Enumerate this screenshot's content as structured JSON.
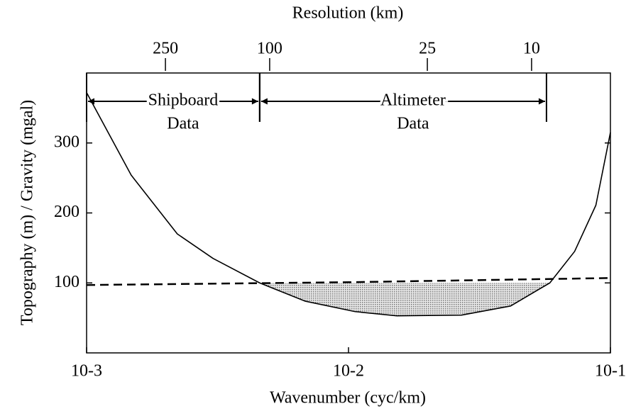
{
  "chart_data": {
    "type": "line",
    "xlabel": "Wavenumber (cyc/km)",
    "ylabel": "Topography (m) / Gravity (mgal)",
    "x2label": "Resolution (km)",
    "xscale": "log",
    "xlim": [
      0.001,
      0.1
    ],
    "ylim": [
      0,
      400
    ],
    "xticks": [
      {
        "value": 0.001,
        "label": "10-3"
      },
      {
        "value": 0.01,
        "label": "10-2"
      },
      {
        "value": 0.1,
        "label": "10-1"
      }
    ],
    "x2ticks": [
      {
        "value": 0.002,
        "label": "250"
      },
      {
        "value": 0.005,
        "label": "100"
      },
      {
        "value": 0.02,
        "label": "25"
      },
      {
        "value": 0.05,
        "label": "10"
      }
    ],
    "yticks": [
      100,
      200,
      300
    ],
    "series": [
      {
        "style": "solid",
        "color": "#000000",
        "x": [
          0.001,
          0.00148,
          0.00222,
          0.00304,
          0.00458,
          0.00682,
          0.0106,
          0.0153,
          0.027,
          0.0416,
          0.0587,
          0.073,
          0.088,
          0.1
        ],
        "values": [
          372,
          254,
          170,
          135,
          100,
          74,
          59,
          53,
          54,
          67,
          100,
          145,
          211,
          315
        ]
      },
      {
        "style": "dashed",
        "color": "#000000",
        "x": [
          0.001,
          0.01,
          0.1
        ],
        "values": [
          97,
          101,
          107
        ]
      }
    ],
    "shade_color": "#c8c8c8",
    "regions": [
      {
        "label": [
          "Shipboard",
          "Data"
        ],
        "x": [
          0.001,
          0.00458
        ]
      },
      {
        "label": [
          "Altimeter",
          "Data"
        ],
        "x": [
          0.00458,
          0.057
        ]
      }
    ]
  }
}
